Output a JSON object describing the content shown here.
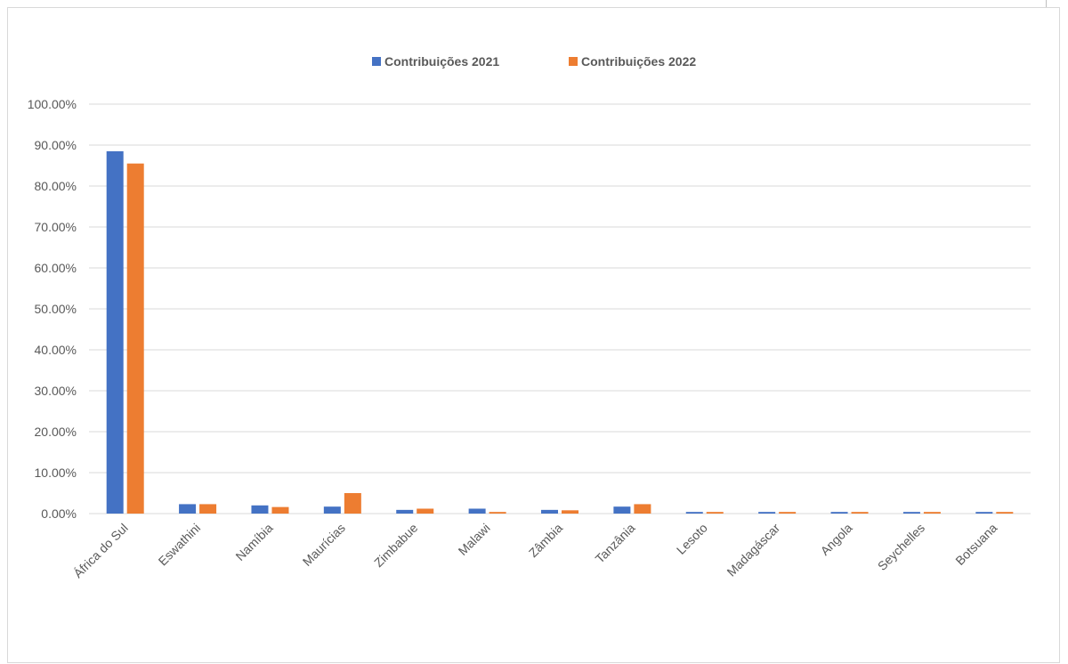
{
  "chart_data": {
    "type": "bar",
    "title": "",
    "xlabel": "",
    "ylabel": "",
    "categories": [
      "África do Sul",
      "Eswathini",
      "Namíbia",
      "Maurícias",
      "Zimbabue",
      "Malawi",
      "Zâmbia",
      "Tanzânia",
      "Lesoto",
      "Madagáscar",
      "Angola",
      "Seychelles",
      "Botsuana"
    ],
    "series": [
      {
        "name": "Contribuições 2021",
        "color": "#4472c4",
        "values": [
          88.5,
          2.3,
          2.0,
          1.7,
          0.9,
          1.2,
          0.9,
          1.7,
          0.4,
          0.4,
          0.4,
          0.4,
          0.4
        ]
      },
      {
        "name": "Contribuições 2022",
        "color": "#ed7d31",
        "values": [
          85.5,
          2.3,
          1.6,
          5.0,
          1.2,
          0.4,
          0.8,
          2.3,
          0.4,
          0.4,
          0.4,
          0.4,
          0.4
        ]
      }
    ],
    "ylim": [
      0,
      100
    ],
    "yticks": [
      "0.00%",
      "10.00%",
      "20.00%",
      "30.00%",
      "40.00%",
      "50.00%",
      "60.00%",
      "70.00%",
      "80.00%",
      "90.00%",
      "100.00%"
    ],
    "grid": true,
    "gridColor": "#d9d9d9",
    "legend_position": "top-center"
  }
}
